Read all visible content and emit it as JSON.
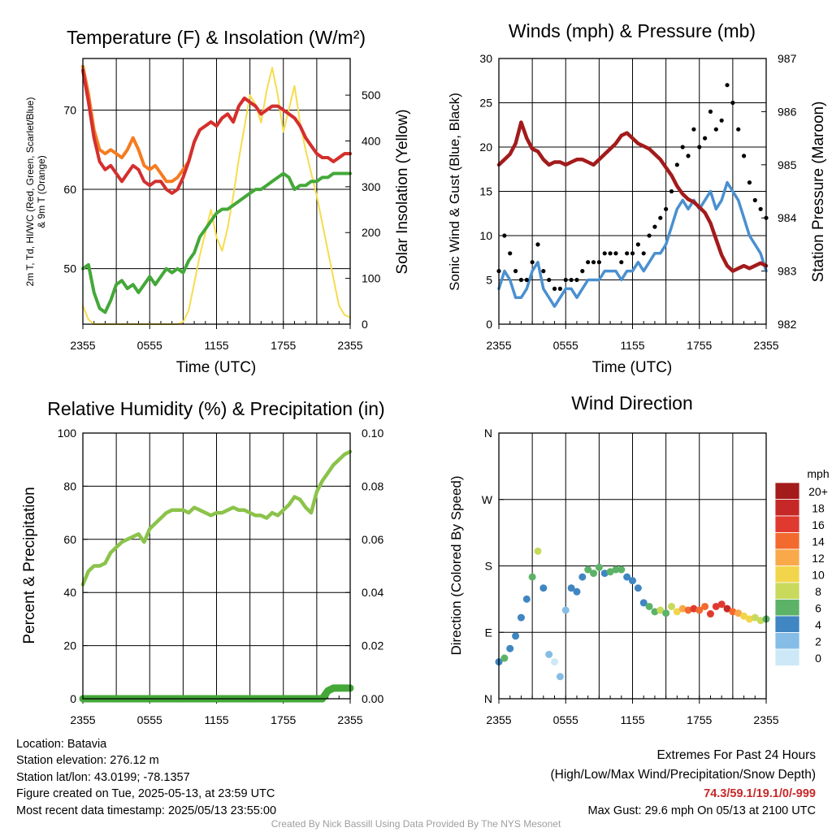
{
  "charts": {
    "temp": {
      "title": "Temperature (F) & Insolation (W/m²)",
      "ylabel_left_1": "2m T, Td, HI/WC (Red, Green, Scarlet/Blue)",
      "ylabel_left_2": "& 9m T (Orange)",
      "ylabel_right": "Solar Insolation (Yellow)",
      "xlabel": "Time (UTC)"
    },
    "wind": {
      "title": "Winds (mph) & Pressure (mb)",
      "ylabel_left": "Sonic Wind & Gust (Blue, Black)",
      "ylabel_right": "Station Pressure (Maroon)",
      "xlabel": "Time (UTC)"
    },
    "rh": {
      "title": "Relative Humidity (%) & Precipitation (in)",
      "ylabel_left": "Percent & Precipitation"
    },
    "dir": {
      "title": "Wind Direction",
      "ylabel_left": "Direction (Colored By Speed)",
      "legend_title": "mph"
    }
  },
  "chart_data": [
    {
      "type": "line",
      "title": "Temperature (F) & Insolation (W/m²)",
      "xlabel": "Time (UTC)",
      "ylabel": "2m T, Td, HI/WC (Red, Green, Scarlet/Blue) & 9m T (Orange)",
      "y2label": "Solar Insolation (Yellow)",
      "x_ticks": [
        "2355",
        "0555",
        "1155",
        "1755",
        "2355"
      ],
      "xlim_hours": [
        0,
        24
      ],
      "ylim": [
        43,
        76.5
      ],
      "y_ticks": [
        50,
        60,
        70
      ],
      "y2lim": [
        0,
        580
      ],
      "y2_ticks": [
        0,
        100,
        200,
        300,
        400,
        500
      ],
      "x_hours": [
        0,
        0.5,
        1,
        1.5,
        2,
        2.5,
        3,
        3.5,
        4,
        4.5,
        5,
        5.5,
        6,
        6.5,
        7,
        7.5,
        8,
        8.5,
        9,
        9.5,
        10,
        10.5,
        11,
        11.5,
        12,
        12.5,
        13,
        13.5,
        14,
        14.5,
        15,
        15.5,
        16,
        16.5,
        17,
        17.5,
        18,
        18.5,
        19,
        19.5,
        20,
        20.5,
        21,
        21.5,
        22,
        22.5,
        23,
        23.5,
        24
      ],
      "series": [
        {
          "name": "2m T",
          "color": "#d32f2f",
          "axis": "left",
          "values": [
            75.0,
            71.0,
            66.5,
            63.5,
            62.5,
            63.0,
            62.0,
            61.0,
            62.0,
            63.0,
            62.5,
            61.0,
            60.5,
            61.0,
            61.0,
            60.0,
            59.5,
            60.0,
            61.5,
            63.5,
            66.0,
            67.5,
            68.0,
            68.5,
            68.0,
            69.0,
            69.5,
            68.5,
            70.5,
            71.5,
            71.0,
            70.5,
            69.5,
            70.0,
            70.5,
            70.5,
            70.0,
            69.5,
            69.0,
            68.0,
            66.5,
            65.5,
            64.5,
            64.0,
            64.0,
            63.5,
            64.0,
            64.5,
            64.5
          ]
        },
        {
          "name": "9m T",
          "color": "#f57c20",
          "axis": "left",
          "values": [
            75.5,
            72.0,
            67.5,
            65.0,
            64.5,
            65.0,
            64.5,
            64.0,
            65.0,
            66.5,
            65.0,
            63.0,
            62.5,
            63.0,
            62.0,
            61.0,
            61.0,
            61.5,
            62.5,
            63.5,
            66.0,
            67.5,
            68.0,
            68.5,
            68.0,
            69.0,
            69.5,
            68.5,
            70.5,
            71.5,
            71.0,
            70.5,
            69.5,
            70.0,
            70.5,
            70.5,
            70.0,
            69.5,
            69.0,
            68.0,
            66.5,
            65.5,
            64.5,
            64.0,
            64.0,
            63.5,
            64.0,
            64.5,
            64.5
          ]
        },
        {
          "name": "2m Td",
          "color": "#43a838",
          "axis": "left",
          "values": [
            50.0,
            50.5,
            47.0,
            45.0,
            44.5,
            46.0,
            48.0,
            48.5,
            47.5,
            48.0,
            47.0,
            48.0,
            49.0,
            48.0,
            49.0,
            50.0,
            49.5,
            50.0,
            49.5,
            51.0,
            52.0,
            54.0,
            55.0,
            56.0,
            57.0,
            57.5,
            57.5,
            58.0,
            58.5,
            59.0,
            59.5,
            60.0,
            60.0,
            60.5,
            61.0,
            61.5,
            62.0,
            61.5,
            60.0,
            60.5,
            60.5,
            61.0,
            61.0,
            61.5,
            61.5,
            62.0,
            62.0,
            62.0,
            62.0
          ]
        },
        {
          "name": "Solar Insolation",
          "color": "#f7dc4c",
          "axis": "right",
          "values": [
            40,
            10,
            0,
            0,
            0,
            0,
            0,
            0,
            0,
            0,
            0,
            0,
            0,
            0,
            0,
            0,
            0,
            0,
            5,
            30,
            90,
            150,
            200,
            250,
            190,
            160,
            210,
            280,
            360,
            430,
            500,
            480,
            440,
            510,
            560,
            500,
            420,
            470,
            520,
            440,
            380,
            330,
            280,
            220,
            160,
            100,
            40,
            20,
            15
          ]
        }
      ]
    },
    {
      "type": "line",
      "title": "Winds (mph) & Pressure (mb)",
      "xlabel": "Time (UTC)",
      "ylabel": "Sonic Wind & Gust (Blue, Black)",
      "y2label": "Station Pressure (Maroon)",
      "x_ticks": [
        "2355",
        "0555",
        "1155",
        "1755",
        "2355"
      ],
      "xlim_hours": [
        0,
        24
      ],
      "ylim": [
        0,
        30
      ],
      "y_ticks": [
        0,
        5,
        10,
        15,
        20,
        25,
        30
      ],
      "y2lim": [
        982,
        987
      ],
      "y2_ticks": [
        982,
        983,
        984,
        985,
        986,
        987
      ],
      "x_hours": [
        0,
        0.5,
        1,
        1.5,
        2,
        2.5,
        3,
        3.5,
        4,
        4.5,
        5,
        5.5,
        6,
        6.5,
        7,
        7.5,
        8,
        8.5,
        9,
        9.5,
        10,
        10.5,
        11,
        11.5,
        12,
        12.5,
        13,
        13.5,
        14,
        14.5,
        15,
        15.5,
        16,
        16.5,
        17,
        17.5,
        18,
        18.5,
        19,
        19.5,
        20,
        20.5,
        21,
        21.5,
        22,
        22.5,
        23,
        23.5,
        24
      ],
      "series": [
        {
          "name": "Sonic Wind",
          "color": "#4a90d0",
          "axis": "left",
          "values": [
            4,
            6,
            5,
            3,
            3,
            4,
            6,
            7,
            4,
            3,
            2,
            3,
            4,
            4,
            3,
            4,
            5,
            5,
            5,
            6,
            6,
            6,
            5,
            6,
            6,
            7,
            6,
            7,
            8,
            8,
            9,
            11,
            13,
            14,
            13,
            14,
            13,
            14,
            15,
            13,
            14,
            16,
            15,
            14,
            12,
            10,
            9,
            8,
            6
          ]
        },
        {
          "name": "Gust",
          "color": "#000000",
          "axis": "left",
          "values": [
            6,
            10,
            8,
            6,
            5,
            5,
            7,
            9,
            6,
            5,
            4,
            4,
            5,
            5,
            5,
            6,
            7,
            7,
            7,
            8,
            8,
            8,
            7,
            8,
            8,
            9,
            8,
            10,
            11,
            12,
            13,
            15,
            18,
            20,
            19,
            22,
            20,
            21,
            24,
            22,
            23,
            27,
            25,
            22,
            19,
            16,
            14,
            13,
            12
          ]
        },
        {
          "name": "Station Pressure",
          "color": "#a31b1b",
          "axis": "right",
          "values": [
            985.0,
            985.1,
            985.2,
            985.4,
            985.8,
            985.5,
            985.3,
            985.25,
            985.1,
            985.0,
            985.05,
            985.05,
            985.0,
            985.05,
            985.1,
            985.1,
            985.05,
            985.0,
            985.1,
            985.2,
            985.3,
            985.4,
            985.55,
            985.6,
            985.5,
            985.4,
            985.35,
            985.3,
            985.2,
            985.1,
            984.95,
            984.8,
            984.6,
            984.45,
            984.35,
            984.3,
            984.2,
            984.1,
            983.9,
            983.6,
            983.3,
            983.1,
            983.0,
            983.05,
            983.1,
            983.05,
            983.1,
            983.15,
            983.1
          ]
        }
      ]
    },
    {
      "type": "line",
      "title": "Relative Humidity (%) & Precipitation (in)",
      "ylabel": "Percent & Precipitation",
      "x_ticks": [
        "2355",
        "0555",
        "1155",
        "1755",
        "2355"
      ],
      "xlim_hours": [
        0,
        24
      ],
      "ylim": [
        0,
        100
      ],
      "y_ticks": [
        0,
        20,
        40,
        60,
        80,
        100
      ],
      "y2lim": [
        0,
        0.1
      ],
      "y2_ticks": [
        "0.00",
        "0.02",
        "0.04",
        "0.06",
        "0.08",
        "0.10"
      ],
      "x_hours": [
        0,
        0.5,
        1,
        1.5,
        2,
        2.5,
        3,
        3.5,
        4,
        4.5,
        5,
        5.5,
        6,
        6.5,
        7,
        7.5,
        8,
        8.5,
        9,
        9.5,
        10,
        10.5,
        11,
        11.5,
        12,
        12.5,
        13,
        13.5,
        14,
        14.5,
        15,
        15.5,
        16,
        16.5,
        17,
        17.5,
        18,
        18.5,
        19,
        19.5,
        20,
        20.5,
        21,
        21.5,
        22,
        22.5,
        23,
        23.5,
        24
      ],
      "series": [
        {
          "name": "Relative Humidity",
          "color": "#8bc34a",
          "axis": "left",
          "values": [
            43,
            48,
            50,
            50,
            51,
            55,
            57,
            59,
            60,
            61,
            62,
            59,
            64,
            66,
            68,
            70,
            71,
            71,
            71,
            70,
            72,
            71,
            70,
            69,
            70,
            70,
            71,
            72,
            71,
            71,
            70,
            69,
            69,
            68,
            70,
            69,
            71,
            73,
            76,
            75,
            72,
            70,
            78,
            82,
            85,
            88,
            90,
            92,
            93
          ]
        },
        {
          "name": "Precipitation",
          "color": "#43a838",
          "axis": "right",
          "values": [
            0,
            0,
            0,
            0,
            0,
            0,
            0,
            0,
            0,
            0,
            0,
            0,
            0,
            0,
            0,
            0,
            0,
            0,
            0,
            0,
            0,
            0,
            0,
            0,
            0,
            0,
            0,
            0,
            0,
            0,
            0,
            0,
            0,
            0,
            0,
            0,
            0,
            0,
            0,
            0,
            0,
            0,
            0,
            0,
            0.003,
            0.004,
            0.004,
            0.004,
            0.004
          ]
        }
      ]
    },
    {
      "type": "scatter",
      "title": "Wind Direction",
      "ylabel": "Direction (Colored By Speed)",
      "x_ticks": [
        "2355",
        "0555",
        "1155",
        "1755",
        "2355"
      ],
      "xlim_hours": [
        0,
        24
      ],
      "y_ticks": [
        "N",
        "E",
        "S",
        "W",
        "N"
      ],
      "ylim_deg": [
        0,
        360
      ],
      "color_key": "speed_mph",
      "x_hours": [
        0,
        0.5,
        1,
        1.5,
        2,
        2.5,
        3,
        3.5,
        4,
        4.5,
        5,
        5.5,
        6,
        6.5,
        7,
        7.5,
        8,
        8.5,
        9,
        9.5,
        10,
        10.5,
        11,
        11.5,
        12,
        12.5,
        13,
        13.5,
        14,
        14.5,
        15,
        15.5,
        16,
        16.5,
        17,
        17.5,
        18,
        18.5,
        19,
        19.5,
        20,
        20.5,
        21,
        21.5,
        22,
        22.5,
        23,
        23.5,
        24
      ],
      "direction_deg": [
        50,
        55,
        68,
        85,
        110,
        135,
        165,
        200,
        150,
        60,
        50,
        30,
        120,
        150,
        145,
        165,
        175,
        170,
        178,
        170,
        172,
        175,
        175,
        165,
        160,
        150,
        130,
        125,
        118,
        120,
        116,
        125,
        118,
        122,
        120,
        122,
        120,
        125,
        115,
        125,
        128,
        122,
        118,
        116,
        112,
        108,
        110,
        106,
        108
      ],
      "speed_mph": [
        3,
        5,
        4,
        3,
        3,
        4,
        6,
        7,
        4,
        1,
        0,
        2,
        2,
        3,
        3,
        4,
        5,
        6,
        6,
        4,
        5,
        5,
        5,
        4,
        4,
        4,
        4,
        5,
        6,
        7,
        6,
        8,
        9,
        12,
        13,
        15,
        14,
        13,
        16,
        15,
        16,
        18,
        14,
        12,
        10,
        9,
        8,
        7,
        6
      ],
      "legend": {
        "title": "mph",
        "labels": [
          "20+",
          "18",
          "16",
          "14",
          "12",
          "10",
          "8",
          "6",
          "4",
          "2",
          "0"
        ],
        "colors": [
          "#a31b1b",
          "#c62828",
          "#e03a30",
          "#f26a2e",
          "#f9a84a",
          "#f2d54a",
          "#c9d95b",
          "#5cb368",
          "#3f86c2",
          "#86bde6",
          "#cde8f7"
        ]
      }
    }
  ],
  "info": {
    "location": "Location: Batavia",
    "elevation": "Station elevation: 276.12 m",
    "latlon": "Station lat/lon: 43.0199; -78.1357",
    "created": "Figure created on Tue, 2025-05-13, at 23:59 UTC",
    "recent": "Most recent data timestamp: 2025/05/13 23:55:00"
  },
  "extremes": {
    "title": "Extremes For Past 24 Hours",
    "subtitle": "(High/Low/Max Wind/Precipitation/Snow Depth)",
    "values": "74.3/59.1/19.1/0/-999",
    "gust": "Max Gust: 29.6 mph On 05/13 at 2100 UTC"
  },
  "credit": "Created By Nick Bassill Using Data Provided By The NYS Mesonet"
}
